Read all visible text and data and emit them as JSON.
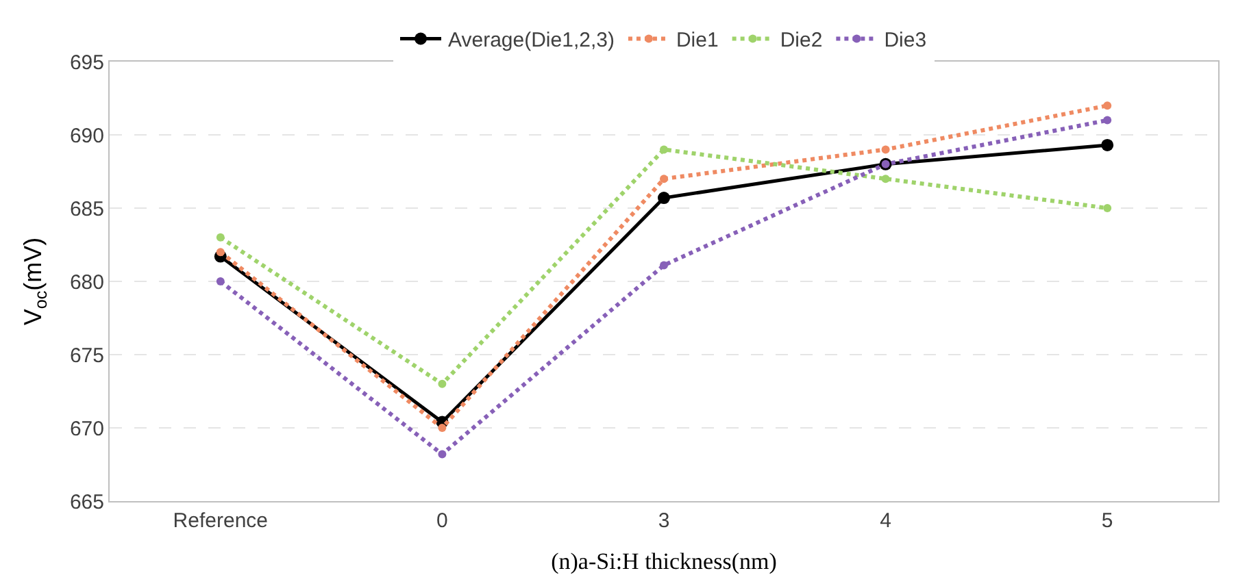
{
  "chart_data": {
    "type": "line",
    "xlabel": "(n)a-Si:H thickness(nm)",
    "ylabel": "V$_{oc}$(mV)",
    "categories": [
      "Reference",
      "0",
      "3",
      "4",
      "5"
    ],
    "series": [
      {
        "name": "Average(Die1,2,3)",
        "color": "#000000",
        "values": [
          681.7,
          670.4,
          685.7,
          688,
          689.3
        ],
        "line_style": "solid"
      },
      {
        "name": "Die1",
        "color": "#ef8a62",
        "values": [
          682,
          670,
          687,
          689,
          692
        ],
        "line_style": "dotted"
      },
      {
        "name": "Die2",
        "color": "#9fd36b",
        "values": [
          683,
          673,
          689,
          687,
          685
        ],
        "line_style": "dotted"
      },
      {
        "name": "Die3",
        "color": "#8760b8",
        "values": [
          680,
          668.2,
          681.1,
          688,
          691
        ],
        "line_style": "dotted"
      }
    ],
    "ylim": [
      665,
      695
    ],
    "yticks": [
      665,
      670,
      675,
      680,
      685,
      690,
      695
    ],
    "grid": "y",
    "legend": "top",
    "marker": "circle"
  }
}
